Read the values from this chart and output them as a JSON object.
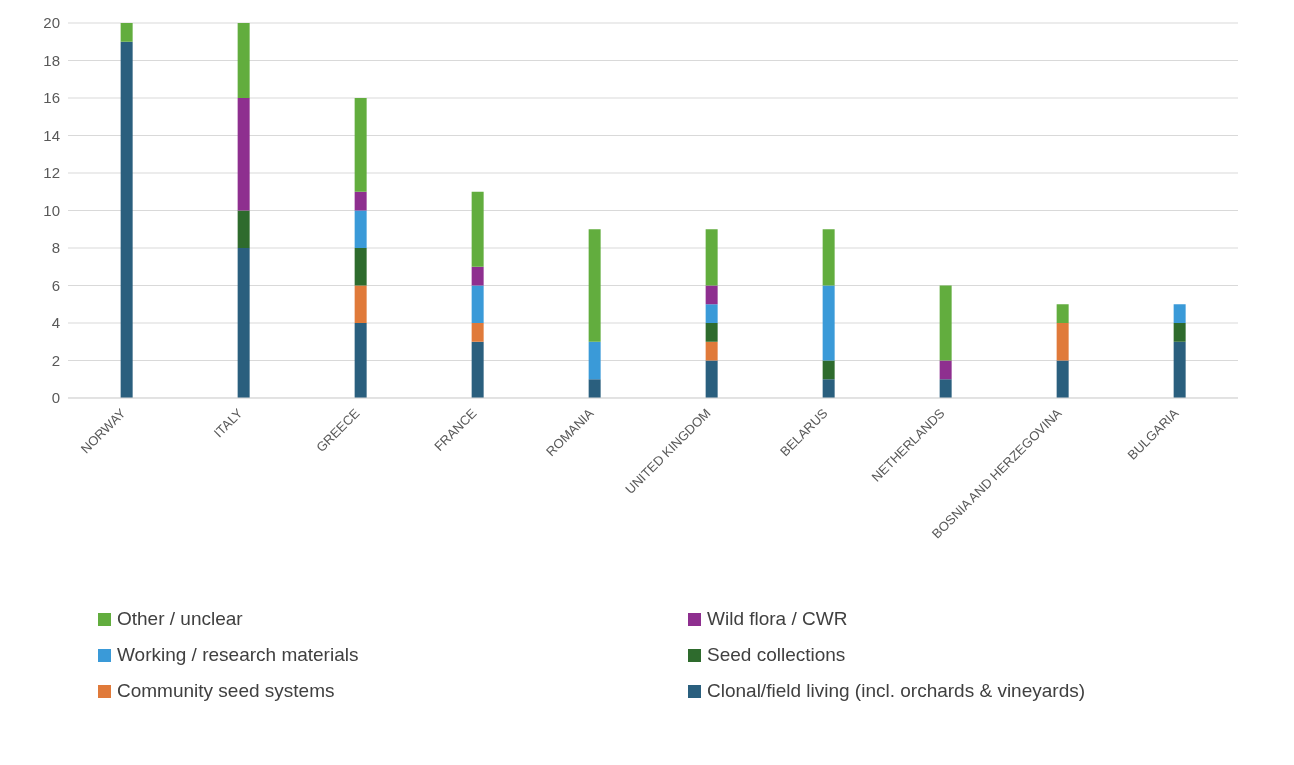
{
  "chart_data": {
    "type": "bar",
    "stacked": true,
    "categories": [
      "NORWAY",
      "ITALY",
      "GREECE",
      "FRANCE",
      "ROMANIA",
      "UNITED KINGDOM",
      "BELARUS",
      "NETHERLANDS",
      "BOSNIA AND HERZEGOVINA",
      "BULGARIA"
    ],
    "series": [
      {
        "name": "Clonal/field living (incl. orchards & vineyards)",
        "color": "#2a5f7e",
        "values": [
          19,
          8,
          4,
          3,
          1,
          2,
          1,
          1,
          2,
          3
        ]
      },
      {
        "name": "Community seed systems",
        "color": "#e07a3a",
        "values": [
          0,
          0,
          2,
          1,
          0,
          1,
          0,
          0,
          2,
          0
        ]
      },
      {
        "name": "Seed collections",
        "color": "#2e6b2d",
        "values": [
          0,
          2,
          2,
          0,
          0,
          1,
          1,
          0,
          0,
          1
        ]
      },
      {
        "name": "Working / research materials",
        "color": "#3a9ad8",
        "values": [
          0,
          0,
          2,
          2,
          2,
          1,
          4,
          0,
          0,
          1
        ]
      },
      {
        "name": "Wild flora / CWR",
        "color": "#8e2f8f",
        "values": [
          0,
          6,
          1,
          1,
          0,
          1,
          0,
          1,
          0,
          0
        ]
      },
      {
        "name": "Other / unclear",
        "color": "#62ad3e",
        "values": [
          1,
          4,
          5,
          4,
          6,
          3,
          3,
          4,
          1,
          0
        ]
      }
    ],
    "ylim": [
      0,
      20
    ],
    "yticks": [
      0,
      2,
      4,
      6,
      8,
      10,
      12,
      14,
      16,
      18,
      20
    ],
    "grid": "y",
    "legend": "bottom"
  }
}
